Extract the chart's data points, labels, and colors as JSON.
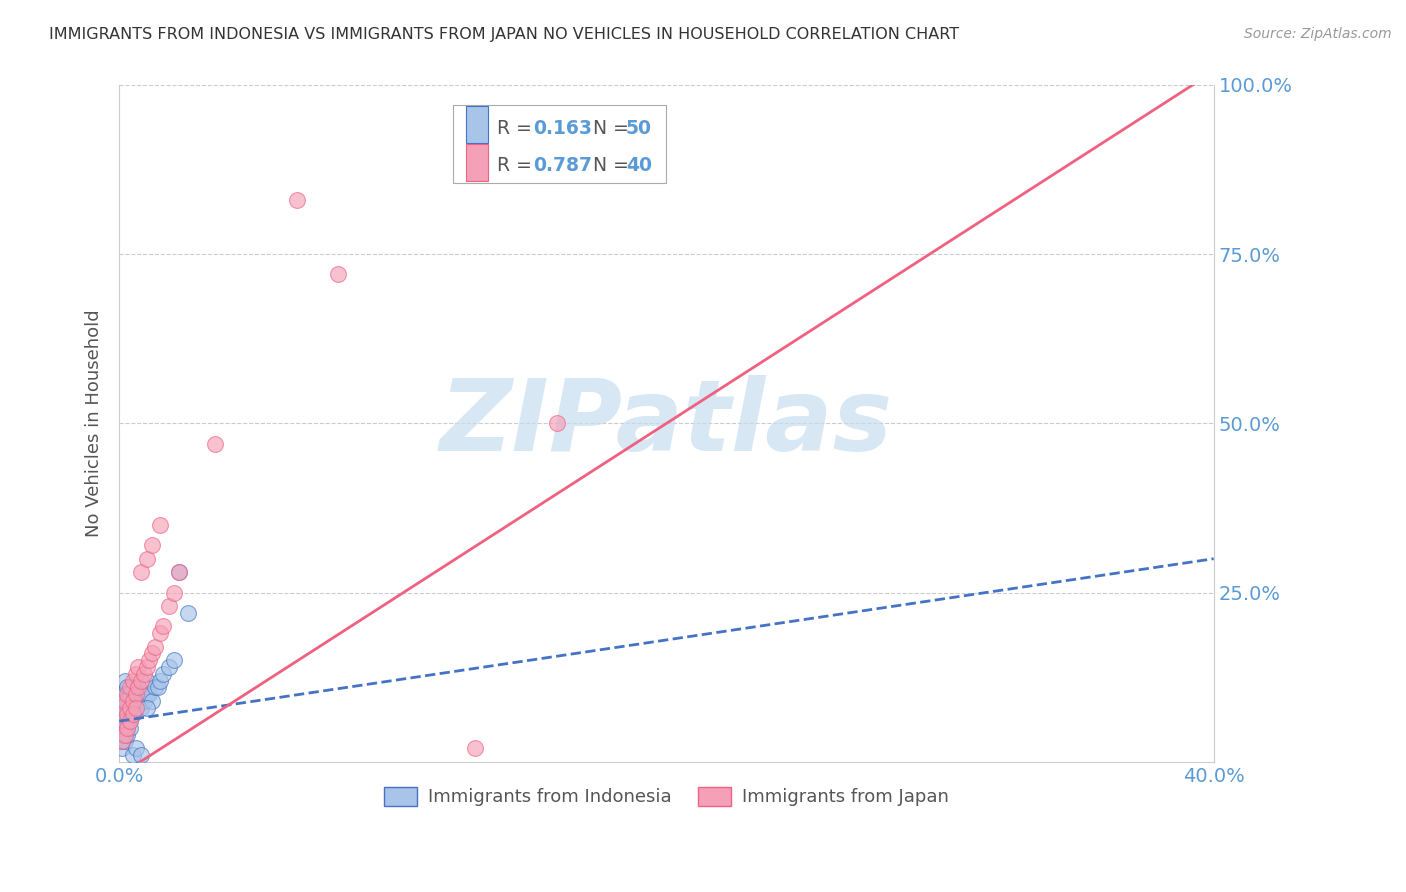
{
  "title": "IMMIGRANTS FROM INDONESIA VS IMMIGRANTS FROM JAPAN NO VEHICLES IN HOUSEHOLD CORRELATION CHART",
  "source": "Source: ZipAtlas.com",
  "ylabel": "No Vehicles in Household",
  "xlim": [
    0.0,
    0.4
  ],
  "ylim": [
    0.0,
    1.0
  ],
  "color_indonesia": "#a8c4e8",
  "color_japan": "#f4a0b8",
  "color_indonesia_line": "#4472c4",
  "color_japan_line": "#f06080",
  "color_axis_labels": "#5b9bd5",
  "color_grid": "#cccccc",
  "watermark_text": "ZIPatlas",
  "watermark_color": "#c8ddf0",
  "legend_r1": "0.163",
  "legend_n1": "50",
  "legend_r2": "0.787",
  "legend_n2": "40",
  "japan_line_x0": 0.0,
  "japan_line_y0": -0.02,
  "japan_line_x1": 0.4,
  "japan_line_y1": 1.02,
  "indo_line_x0": 0.0,
  "indo_line_y0": 0.06,
  "indo_line_x1": 0.4,
  "indo_line_y1": 0.3,
  "indonesia_x": [
    0.001,
    0.001,
    0.001,
    0.001,
    0.002,
    0.002,
    0.002,
    0.002,
    0.002,
    0.002,
    0.003,
    0.003,
    0.003,
    0.003,
    0.003,
    0.004,
    0.004,
    0.004,
    0.005,
    0.005,
    0.005,
    0.006,
    0.006,
    0.007,
    0.007,
    0.008,
    0.008,
    0.009,
    0.01,
    0.01,
    0.011,
    0.012,
    0.013,
    0.014,
    0.015,
    0.016,
    0.018,
    0.02,
    0.022,
    0.025,
    0.001,
    0.001,
    0.002,
    0.002,
    0.003,
    0.004,
    0.005,
    0.006,
    0.008,
    0.01
  ],
  "indonesia_y": [
    0.04,
    0.06,
    0.08,
    0.1,
    0.05,
    0.07,
    0.08,
    0.09,
    0.1,
    0.12,
    0.05,
    0.06,
    0.08,
    0.09,
    0.11,
    0.06,
    0.08,
    0.1,
    0.07,
    0.09,
    0.11,
    0.08,
    0.1,
    0.09,
    0.11,
    0.08,
    0.1,
    0.09,
    0.1,
    0.12,
    0.1,
    0.09,
    0.11,
    0.11,
    0.12,
    0.13,
    0.14,
    0.15,
    0.28,
    0.22,
    0.02,
    0.03,
    0.03,
    0.04,
    0.04,
    0.05,
    0.01,
    0.02,
    0.01,
    0.08
  ],
  "japan_x": [
    0.001,
    0.001,
    0.002,
    0.002,
    0.003,
    0.003,
    0.004,
    0.004,
    0.005,
    0.005,
    0.006,
    0.006,
    0.007,
    0.007,
    0.008,
    0.009,
    0.01,
    0.011,
    0.012,
    0.013,
    0.015,
    0.016,
    0.018,
    0.02,
    0.022,
    0.035,
    0.001,
    0.002,
    0.003,
    0.004,
    0.005,
    0.006,
    0.008,
    0.01,
    0.012,
    0.015,
    0.065,
    0.08,
    0.13,
    0.16
  ],
  "japan_y": [
    0.05,
    0.08,
    0.06,
    0.09,
    0.07,
    0.1,
    0.08,
    0.11,
    0.09,
    0.12,
    0.1,
    0.13,
    0.11,
    0.14,
    0.12,
    0.13,
    0.14,
    0.15,
    0.16,
    0.17,
    0.19,
    0.2,
    0.23,
    0.25,
    0.28,
    0.47,
    0.03,
    0.04,
    0.05,
    0.06,
    0.07,
    0.08,
    0.28,
    0.3,
    0.32,
    0.35,
    0.83,
    0.72,
    0.02,
    0.5
  ]
}
